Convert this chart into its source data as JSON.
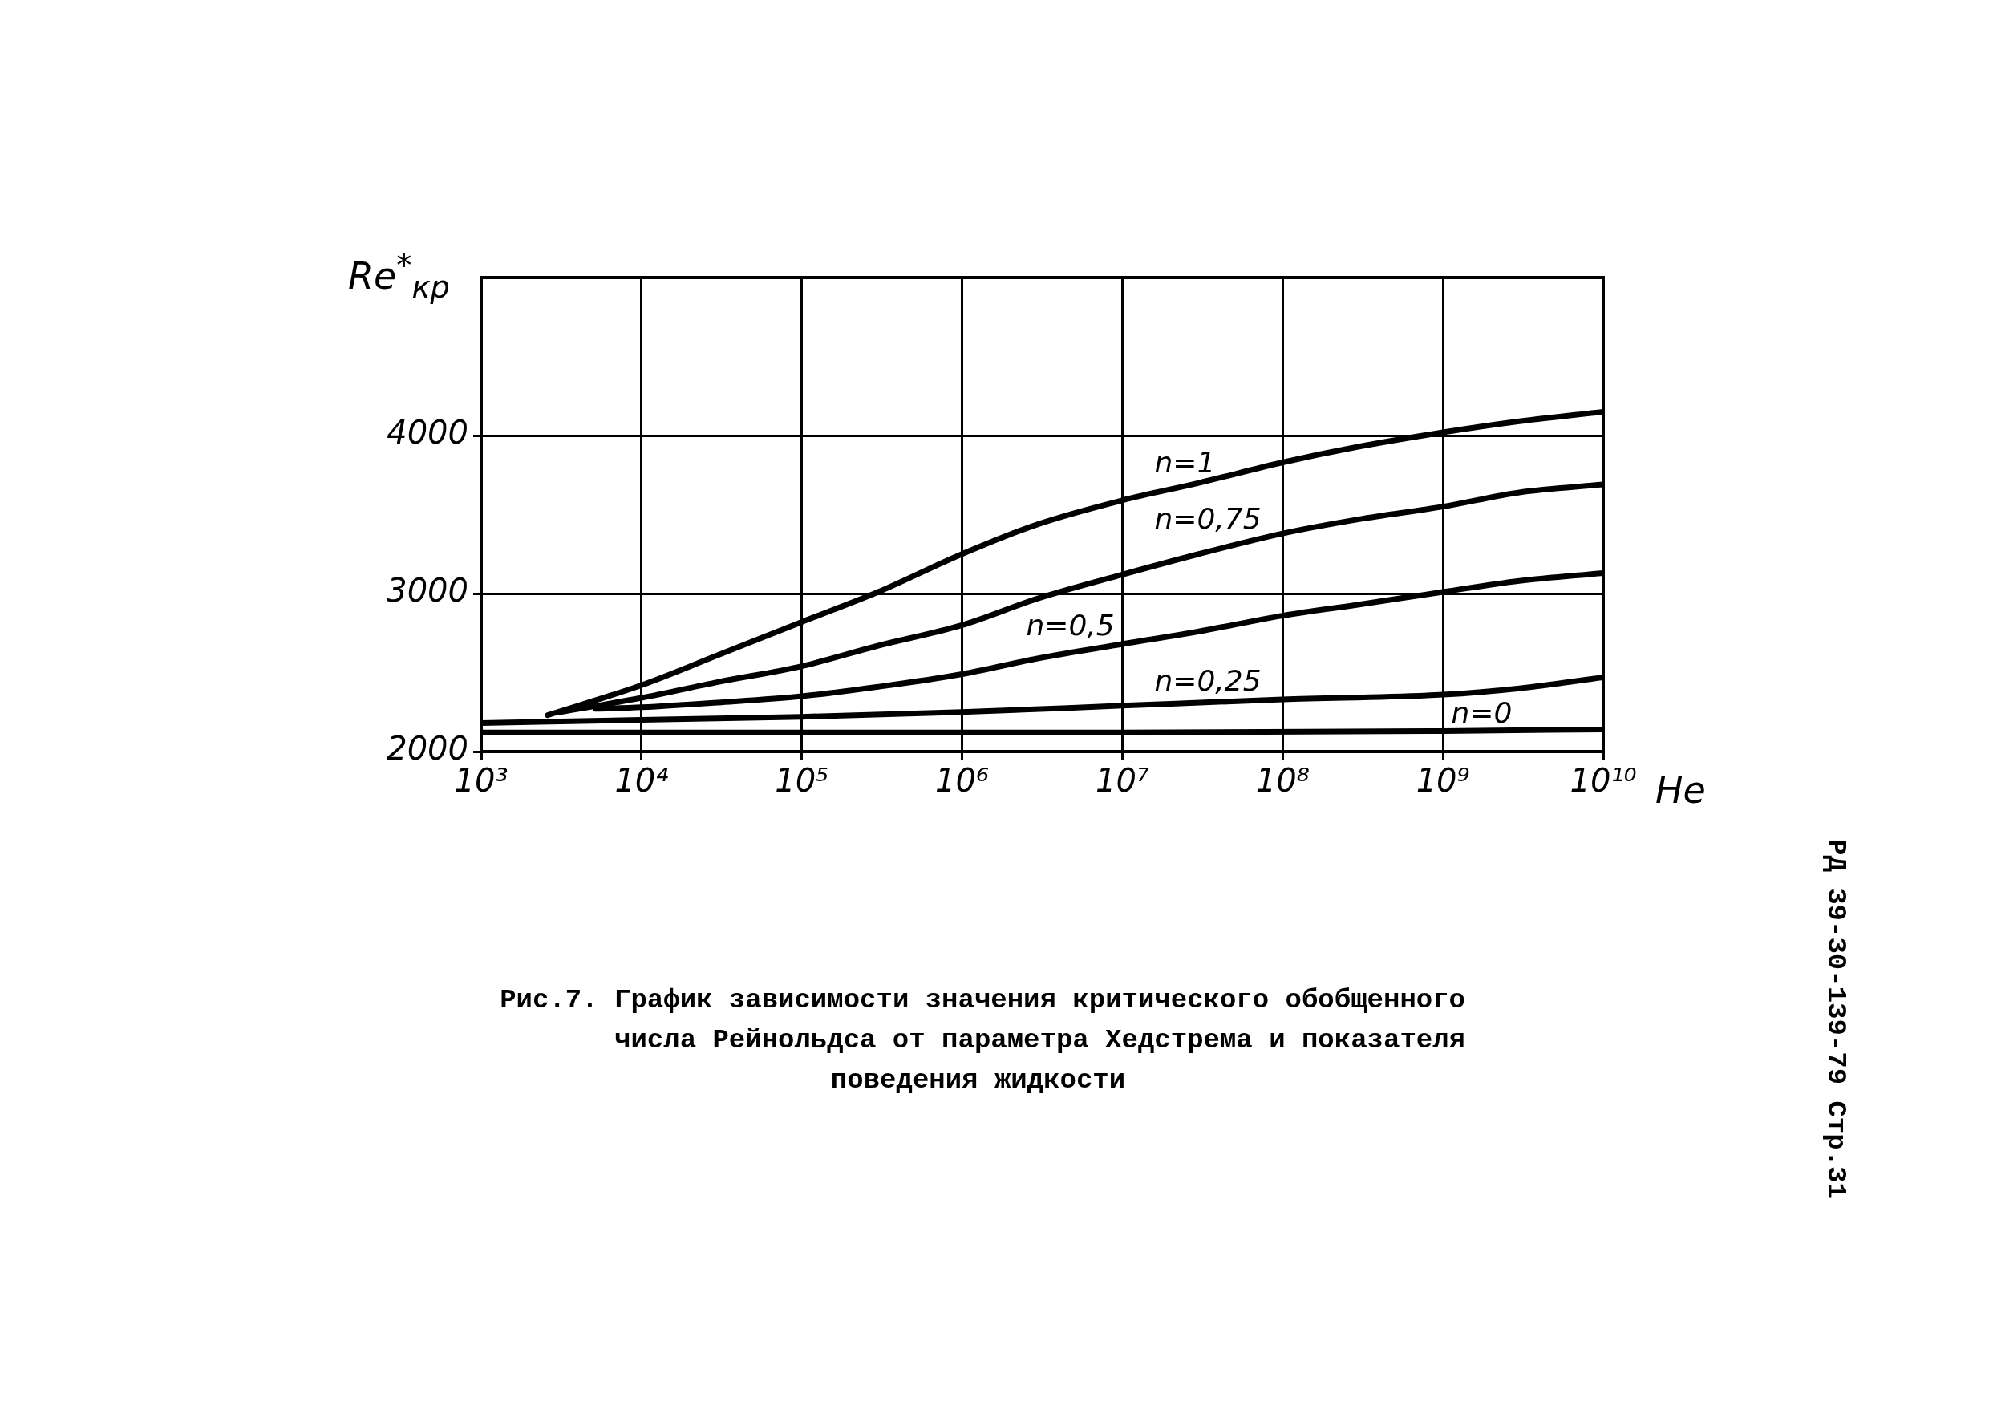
{
  "chart_data": {
    "type": "line",
    "title": "Рис.7. График зависимости значения критического обобщенного числа Рейнольдса от параметра Хедстрема и показателя поведения жидкости",
    "xlabel": "He",
    "ylabel": "Re$^{*}$$_{кр}$",
    "annotations": [
      "РД 39-30-139-79 Стр.31"
    ],
    "log": "x",
    "xlim": [
      1000,
      10000000000
    ],
    "xticks": [
      {
        "value": 1000,
        "label": "10³"
      },
      {
        "value": 10000,
        "label": "10⁴"
      },
      {
        "value": 100000,
        "label": "10⁵"
      },
      {
        "value": 1000000,
        "label": "10⁶"
      },
      {
        "value": 10000000,
        "label": "10⁷"
      },
      {
        "value": 100000000,
        "label": "10⁸"
      },
      {
        "value": 1000000000,
        "label": "10⁹"
      },
      {
        "value": 10000000000,
        "label": "10¹⁰"
      }
    ],
    "ylim": [
      2000,
      5000
    ],
    "yticks": [
      2000,
      3000,
      4000
    ],
    "grid": true,
    "marker": "none",
    "line_style": "solid",
    "series": [
      {
        "name": "n=1",
        "color": "#000000",
        "x": [
          2600,
          10000,
          30000,
          100000,
          300000,
          1000000,
          3000000,
          10000000,
          30000000,
          100000000,
          300000000,
          1000000000,
          3000000000,
          10000000000
        ],
        "values": [
          2230,
          2420,
          2610,
          2820,
          3010,
          3250,
          3440,
          3590,
          3700,
          3830,
          3930,
          4020,
          4090,
          4150
        ]
      },
      {
        "name": "n=0,75",
        "color": "#000000",
        "x": [
          3100,
          10000,
          30000,
          100000,
          300000,
          1000000,
          3000000,
          10000000,
          30000000,
          100000000,
          300000000,
          1000000000,
          3000000000,
          10000000000
        ],
        "values": [
          2250,
          2340,
          2440,
          2540,
          2670,
          2800,
          2970,
          3120,
          3250,
          3380,
          3470,
          3550,
          3640,
          3690
        ]
      },
      {
        "name": "n=0,5",
        "color": "#000000",
        "x": [
          5200,
          10000,
          30000,
          100000,
          300000,
          1000000,
          3000000,
          10000000,
          30000000,
          100000000,
          300000000,
          1000000000,
          3000000000,
          10000000000
        ],
        "values": [
          2270,
          2280,
          2310,
          2350,
          2410,
          2490,
          2590,
          2680,
          2760,
          2860,
          2930,
          3010,
          3080,
          3130
        ]
      },
      {
        "name": "n=0,25",
        "color": "#000000",
        "x": [
          1000,
          10000,
          100000,
          1000000,
          10000000,
          100000000,
          1000000000,
          3000000000,
          10000000000
        ],
        "values": [
          2180,
          2200,
          2220,
          2250,
          2290,
          2330,
          2360,
          2400,
          2470
        ]
      },
      {
        "name": "n=0",
        "color": "#000000",
        "x": [
          1000,
          100000,
          10000000,
          1000000000,
          10000000000
        ],
        "values": [
          2120,
          2120,
          2120,
          2130,
          2140
        ]
      }
    ]
  }
}
